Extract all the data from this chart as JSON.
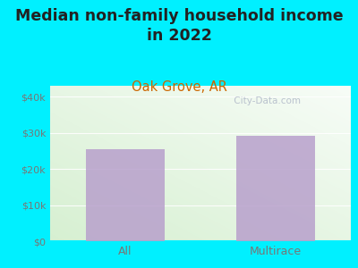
{
  "title": "Median non-family household income\nin 2022",
  "subtitle": "Oak Grove, AR",
  "categories": [
    "All",
    "Multirace"
  ],
  "values": [
    25500,
    29200
  ],
  "bar_color": "#b8a0cc",
  "yticks": [
    0,
    10000,
    20000,
    30000,
    40000
  ],
  "ytick_labels": [
    "$0",
    "$10k",
    "$20k",
    "$30k",
    "$40k"
  ],
  "ylim": [
    0,
    43000
  ],
  "title_fontsize": 12.5,
  "subtitle_fontsize": 10.5,
  "subtitle_color": "#cc6600",
  "title_color": "#222222",
  "tick_color": "#777777",
  "bg_outer": "#00f0ff",
  "watermark": " City-Data.com",
  "xlim": [
    -0.5,
    1.5
  ]
}
